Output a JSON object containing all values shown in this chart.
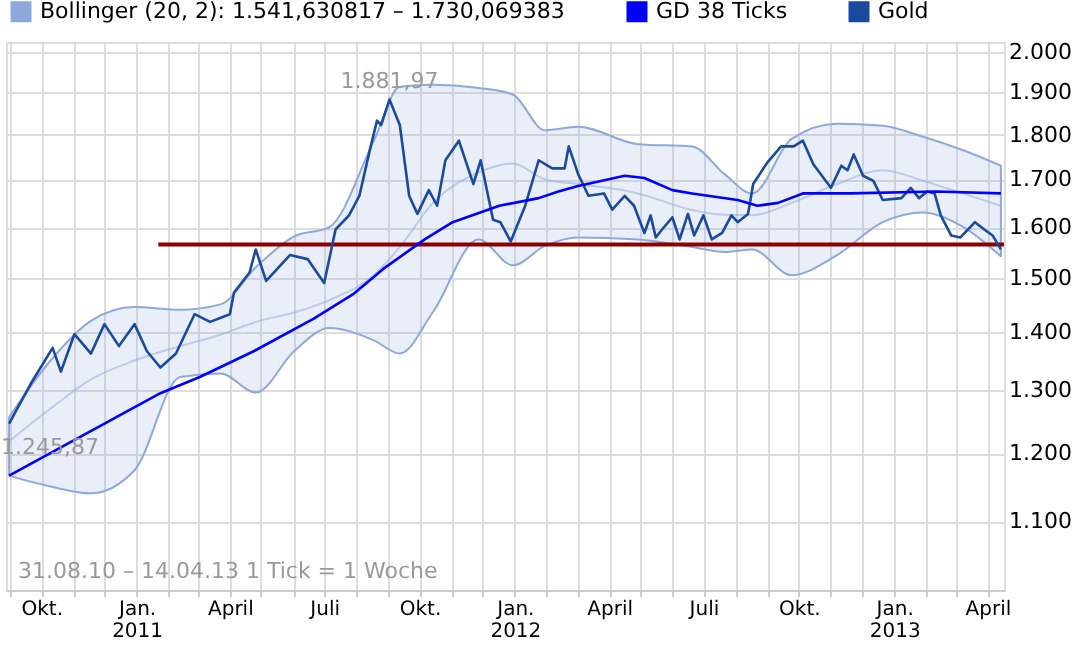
{
  "chart_data": {
    "type": "line",
    "log": true,
    "grid": true,
    "legend": "top left",
    "marker": "none",
    "line_style": "solid",
    "xlim": [
      "2010-08-28",
      "2013-04-17"
    ],
    "xticks": [
      {
        "value": "2010-09-01",
        "label": null
      },
      {
        "value": "2010-10-01",
        "label": "Okt."
      },
      {
        "value": "2010-11-01",
        "label": null
      },
      {
        "value": "2010-12-01",
        "label": null
      },
      {
        "value": "2011-01-01",
        "label": "Jan.\n2011"
      },
      {
        "value": "2011-02-01",
        "label": null
      },
      {
        "value": "2011-03-01",
        "label": null
      },
      {
        "value": "2011-04-01",
        "label": "April"
      },
      {
        "value": "2011-05-01",
        "label": null
      },
      {
        "value": "2011-06-01",
        "label": null
      },
      {
        "value": "2011-07-01",
        "label": "Juli"
      },
      {
        "value": "2011-08-01",
        "label": null
      },
      {
        "value": "2011-09-01",
        "label": null
      },
      {
        "value": "2011-10-01",
        "label": "Okt."
      },
      {
        "value": "2011-11-01",
        "label": null
      },
      {
        "value": "2011-12-01",
        "label": null
      },
      {
        "value": "2012-01-01",
        "label": "Jan.\n2012"
      },
      {
        "value": "2012-02-01",
        "label": null
      },
      {
        "value": "2012-03-01",
        "label": null
      },
      {
        "value": "2012-04-01",
        "label": "April"
      },
      {
        "value": "2012-05-01",
        "label": null
      },
      {
        "value": "2012-06-01",
        "label": null
      },
      {
        "value": "2012-07-01",
        "label": "Juli"
      },
      {
        "value": "2012-08-01",
        "label": null
      },
      {
        "value": "2012-09-01",
        "label": null
      },
      {
        "value": "2012-10-01",
        "label": "Okt."
      },
      {
        "value": "2012-11-01",
        "label": null
      },
      {
        "value": "2012-12-01",
        "label": null
      },
      {
        "value": "2013-01-01",
        "label": "Jan.\n2013"
      },
      {
        "value": "2013-02-01",
        "label": null
      },
      {
        "value": "2013-03-01",
        "label": null
      },
      {
        "value": "2013-04-01",
        "label": "April"
      }
    ],
    "ylim": [
      1008,
      2025
    ],
    "yticks": [
      {
        "value": 1100,
        "label": "1.100"
      },
      {
        "value": 1200,
        "label": "1.200"
      },
      {
        "value": 1300,
        "label": "1.300"
      },
      {
        "value": 1400,
        "label": "1.400"
      },
      {
        "value": 1500,
        "label": "1.500"
      },
      {
        "value": 1600,
        "label": "1.600"
      },
      {
        "value": 1700,
        "label": "1.700"
      },
      {
        "value": 1800,
        "label": "1.800"
      },
      {
        "value": 1900,
        "label": "1.900"
      },
      {
        "value": 2000,
        "label": "2.000"
      }
    ],
    "series": [
      {
        "name": "Bollinger (20, 2): 1.541,630817 – 1.730,069383",
        "color": "#8fa8dc",
        "x": [
          "2010-08-31",
          "2010-10-10",
          "2010-11-18",
          "2010-12-30",
          "2011-02-12",
          "2011-03-23",
          "2011-04-26",
          "2011-06-02",
          "2011-07-06",
          "2011-08-18",
          "2011-09-12",
          "2011-10-14",
          "2011-11-27",
          "2011-12-30",
          "2012-01-30",
          "2012-03-02",
          "2012-04-29",
          "2012-06-20",
          "2012-07-21",
          "2012-08-17",
          "2012-09-24",
          "2012-11-07",
          "2012-12-21",
          "2013-01-29",
          "2013-03-08",
          "2013-04-14"
        ],
        "values": [
          1218,
          1270,
          1318,
          1350,
          1375,
          1395,
          1418,
          1435,
          1458,
          1505,
          1560,
          1650,
          1715,
          1735,
          1700,
          1690,
          1670,
          1635,
          1625,
          1624,
          1650,
          1690,
          1720,
          1697,
          1670,
          1644
        ],
        "lower": [
          1166,
          1150,
          1140,
          1174,
          1322,
          1328,
          1296,
          1366,
          1407,
          1385,
          1362,
          1436,
          1575,
          1524,
          1562,
          1579,
          1575,
          1560,
          1550,
          1555,
          1505,
          1544,
          1610,
          1630,
          1601,
          1541.63
        ],
        "upper": [
          1256,
          1350,
          1420,
          1445,
          1440,
          1450,
          1520,
          1581,
          1600,
          1786,
          1913,
          1918,
          1910,
          1894,
          1810,
          1818,
          1778,
          1773,
          1712,
          1670,
          1790,
          1825,
          1820,
          1795,
          1765,
          1730.07
        ]
      },
      {
        "color": "#8b0000",
        "x": [
          "2011-01-22",
          "2013-04-17"
        ],
        "values": [
          1565,
          1565
        ]
      },
      {
        "name": "GD 38 Ticks",
        "color": "#0000ff",
        "x": [
          "2010-08-31",
          "2011-01-24",
          "2011-03-03",
          "2011-04-24",
          "2011-06-21",
          "2011-07-29",
          "2011-08-27",
          "2011-10-06",
          "2011-11-02",
          "2011-12-17",
          "2012-01-24",
          "2012-02-12",
          "2012-03-02",
          "2012-04-16",
          "2012-05-05",
          "2012-06-01",
          "2012-06-20",
          "2012-08-03",
          "2012-08-22",
          "2012-09-11",
          "2012-10-05",
          "2012-11-20",
          "2013-02-11",
          "2013-04-14"
        ],
        "values": [
          1166,
          1295,
          1322,
          1366,
          1424,
          1469,
          1517,
          1575,
          1610,
          1644,
          1660,
          1674,
          1686,
          1708,
          1703,
          1677,
          1670,
          1656,
          1644,
          1650,
          1670,
          1670,
          1674,
          1670
        ]
      },
      {
        "name": "Gold",
        "color": "#1a4a9e",
        "x": [
          "2010-08-31",
          "2010-09-21",
          "2010-10-12",
          "2010-10-20",
          "2010-11-02",
          "2010-11-18",
          "2010-12-01",
          "2010-12-15",
          "2010-12-30",
          "2011-01-11",
          "2011-01-24",
          "2011-02-08",
          "2011-02-26",
          "2011-03-13",
          "2011-04-01",
          "2011-04-05",
          "2011-04-20",
          "2011-04-26",
          "2011-05-06",
          "2011-05-29",
          "2011-06-15",
          "2011-07-01",
          "2011-07-12",
          "2011-07-25",
          "2011-08-04",
          "2011-08-14",
          "2011-08-21",
          "2011-08-25",
          "2011-09-02",
          "2011-09-12",
          "2011-09-21",
          "2011-09-29",
          "2011-10-10",
          "2011-10-18",
          "2011-10-26",
          "2011-11-08",
          "2011-11-22",
          "2011-11-29",
          "2011-12-11",
          "2011-12-18",
          "2011-12-28",
          "2012-01-11",
          "2012-01-24",
          "2012-02-06",
          "2012-02-18",
          "2012-02-22",
          "2012-03-02",
          "2012-03-12",
          "2012-03-27",
          "2012-04-04",
          "2012-04-16",
          "2012-04-25",
          "2012-05-05",
          "2012-05-11",
          "2012-05-16",
          "2012-05-22",
          "2012-06-01",
          "2012-06-08",
          "2012-06-16",
          "2012-06-22",
          "2012-07-01",
          "2012-07-09",
          "2012-07-19",
          "2012-07-28",
          "2012-08-03",
          "2012-08-13",
          "2012-08-18",
          "2012-09-01",
          "2012-09-14",
          "2012-09-26",
          "2012-10-05",
          "2012-10-15",
          "2012-11-01",
          "2012-11-11",
          "2012-11-17",
          "2012-11-23",
          "2012-12-02",
          "2012-12-12",
          "2012-12-21",
          "2013-01-08",
          "2013-01-17",
          "2013-01-25",
          "2013-02-02",
          "2013-02-09",
          "2013-02-15",
          "2013-02-25",
          "2013-03-06",
          "2013-03-20",
          "2013-03-29",
          "2013-04-06",
          "2013-04-14"
        ],
        "values": [
          1245.87,
          1311,
          1372,
          1331,
          1396,
          1362,
          1414,
          1375,
          1414,
          1366,
          1338,
          1362,
          1432,
          1418,
          1432,
          1472,
          1510,
          1555,
          1494,
          1544,
          1536,
          1490,
          1595,
          1624,
          1665,
          1764,
          1832,
          1822,
          1881.97,
          1822,
          1665,
          1627,
          1677,
          1644,
          1742,
          1786,
          1690,
          1742,
          1615,
          1610,
          1571,
          1644,
          1742,
          1724,
          1724,
          1773,
          1712,
          1665,
          1670,
          1636,
          1665,
          1644,
          1588,
          1624,
          1579,
          1595,
          1620,
          1575,
          1627,
          1583,
          1624,
          1575,
          1588,
          1624,
          1610,
          1627,
          1690,
          1738,
          1773,
          1773,
          1786,
          1733,
          1682,
          1730,
          1720,
          1755,
          1708,
          1697,
          1656,
          1660,
          1682,
          1660,
          1674,
          1670,
          1624,
          1583,
          1579,
          1610,
          1595,
          1583,
          1555
        ]
      }
    ],
    "annotations": [
      {
        "text": "1.881,97",
        "x": "2011-09-02",
        "y": 1881.97
      },
      {
        "text": "1.245,87",
        "x": "2010-08-31",
        "y": 1245.87
      },
      "31.08.10 – 14.04.13   1 Tick = 1 Woche"
    ]
  }
}
